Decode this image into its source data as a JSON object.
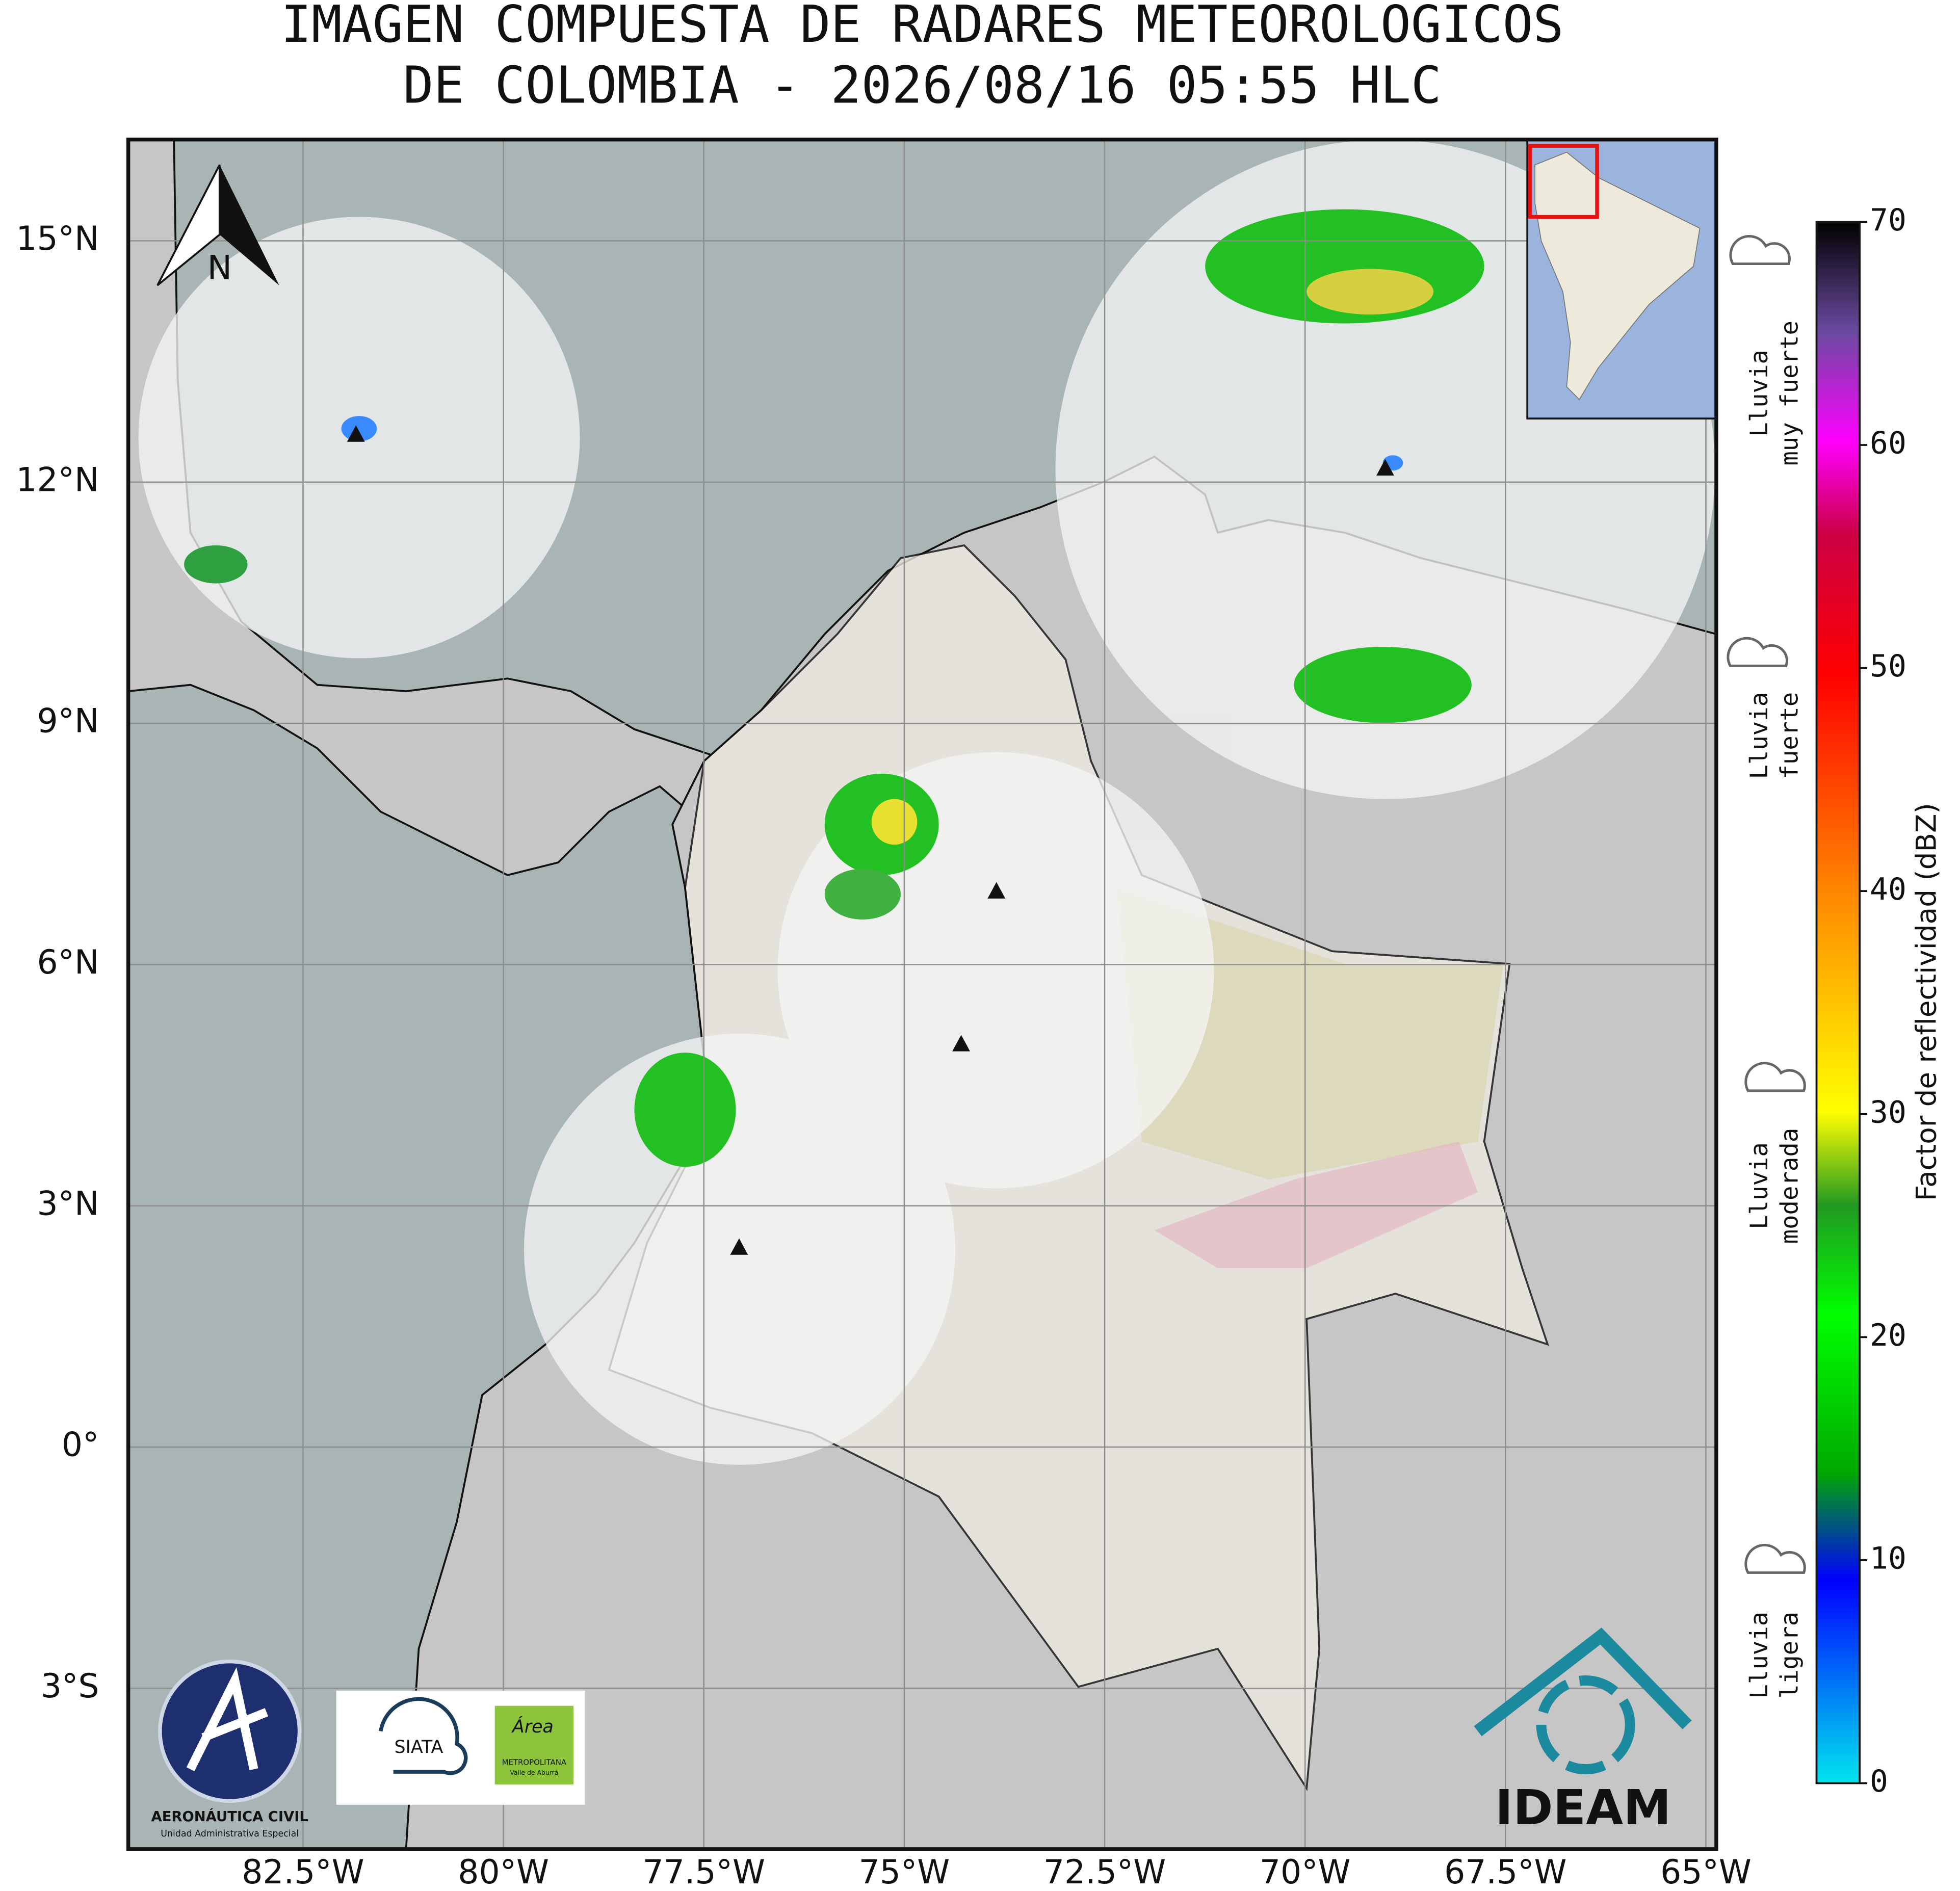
{
  "map": {
    "title": [
      "IMAGEN COMPUESTA DE RADARES METEOROLOGICOS",
      "DE COLOMBIA - 2026/08/16 05:55 HLC"
    ],
    "xlim": [
      -84.68,
      -64.87
    ],
    "ylim": [
      -5.0,
      16.26
    ],
    "xticks": [
      {
        "value": -82.5,
        "label": "82.5°W"
      },
      {
        "value": -80,
        "label": "80°W"
      },
      {
        "value": -77.5,
        "label": "77.5°W"
      },
      {
        "value": -75,
        "label": "75°W"
      },
      {
        "value": -72.5,
        "label": "72.5°W"
      },
      {
        "value": -70,
        "label": "70°W"
      },
      {
        "value": -67.5,
        "label": "67.5°W"
      },
      {
        "value": -65,
        "label": "65°W"
      }
    ],
    "yticks": [
      {
        "value": -3,
        "label": "3°S"
      },
      {
        "value": 0,
        "label": "0°"
      },
      {
        "value": 3,
        "label": "3°N"
      },
      {
        "value": 6,
        "label": "6°N"
      },
      {
        "value": 9,
        "label": "9°N"
      },
      {
        "value": 12,
        "label": "12°N"
      },
      {
        "value": 15,
        "label": "15°N"
      }
    ],
    "north_label": "N",
    "radars": {
      "lon": [
        -81.84,
        -69.0,
        -73.85,
        -74.29,
        -77.06
      ],
      "lat": [
        12.58,
        12.16,
        6.9,
        5.0,
        2.47
      ]
    }
  },
  "colorbar": {
    "label": "Factor de reflectividad (dBZ)",
    "lim": [
      0,
      70
    ],
    "ticks": [
      0,
      10,
      20,
      30,
      40,
      50,
      60,
      70
    ]
  },
  "legend": [
    [
      "Lluvia",
      "ligera"
    ],
    [
      "Lluvia",
      "moderada"
    ],
    [
      "Lluvia",
      "fuerte"
    ],
    [
      "Lluvia",
      "muy fuerte"
    ]
  ],
  "logos": {
    "aerocivil": "AERONÁUTICA CIVIL",
    "aerocivil_sub": "Unidad Administrativa Especial",
    "siata": "SIATA",
    "area": "Área",
    "area_sub": [
      "METROPOLITANA",
      "Valle de Aburrá"
    ],
    "ideam": "IDEAM"
  }
}
